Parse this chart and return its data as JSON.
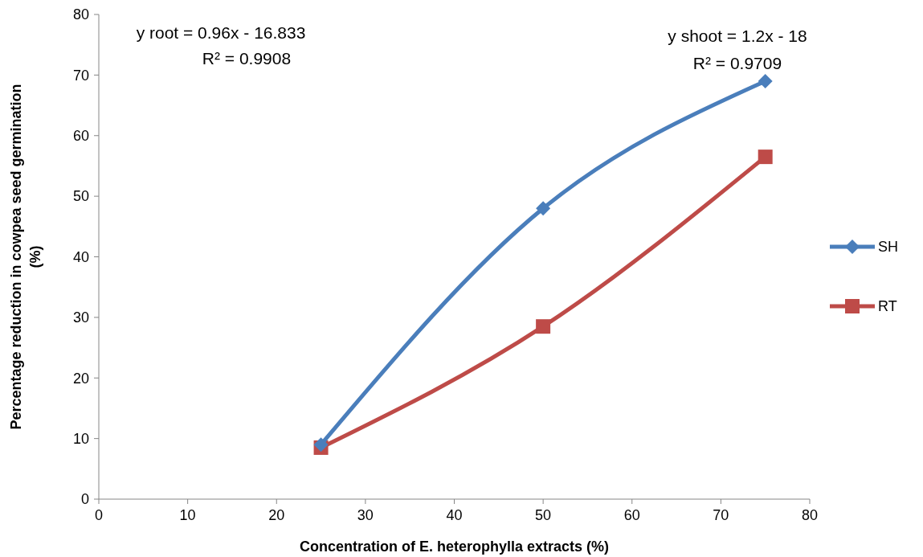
{
  "chart_data": {
    "type": "line",
    "xlabel": "Concentration  of  E. heterophylla extracts (%)",
    "ylabel": "Percentage reduction in cowpea seed  germination (%)",
    "x": [
      25,
      50,
      75
    ],
    "series": [
      {
        "name": "SH",
        "color": "#4a7ebb",
        "values": [
          9,
          48,
          69
        ],
        "marker": "diamond"
      },
      {
        "name": "RT",
        "color": "#be4b48",
        "values": [
          8.5,
          28.5,
          56.5
        ],
        "marker": "square"
      }
    ],
    "xlim": [
      0,
      80
    ],
    "xticks": [
      0,
      10,
      20,
      30,
      40,
      50,
      60,
      70,
      80
    ],
    "ylim": [
      0,
      80
    ],
    "yticks": [
      0,
      10,
      20,
      30,
      40,
      50,
      60,
      70,
      80
    ],
    "legend": "right",
    "grid": false,
    "annotations": [
      "y  root = 0.96x - 16.833",
      "R² = 0.9908",
      "y  shoot = 1.2x - 18",
      "R² = 0.9709"
    ]
  }
}
